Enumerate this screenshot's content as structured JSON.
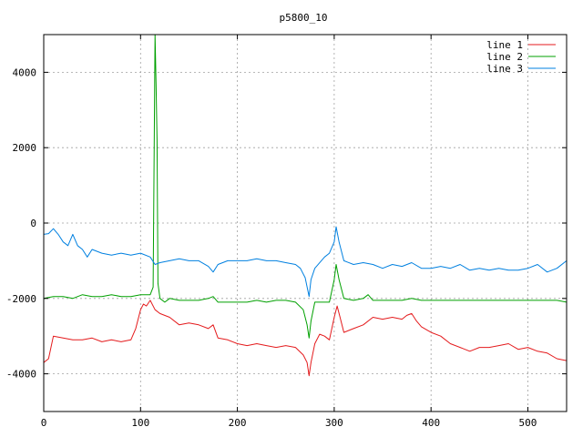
{
  "chart_data": {
    "type": "line",
    "title": "p5800_10",
    "xlabel": "",
    "ylabel": "",
    "xlim": [
      0,
      540
    ],
    "ylim": [
      -5000,
      5000
    ],
    "x_ticks": [
      0,
      100,
      200,
      300,
      400,
      500
    ],
    "y_ticks": [
      -4000,
      -2000,
      0,
      2000,
      4000
    ],
    "grid": true,
    "legend_position": "top-right",
    "series": [
      {
        "name": "line 1",
        "color": "#e41a1c",
        "points": [
          [
            0,
            -3700
          ],
          [
            5,
            -3600
          ],
          [
            10,
            -3000
          ],
          [
            20,
            -3050
          ],
          [
            30,
            -3100
          ],
          [
            40,
            -3100
          ],
          [
            50,
            -3050
          ],
          [
            60,
            -3150
          ],
          [
            70,
            -3100
          ],
          [
            80,
            -3150
          ],
          [
            90,
            -3100
          ],
          [
            95,
            -2800
          ],
          [
            100,
            -2300
          ],
          [
            103,
            -2150
          ],
          [
            106,
            -2200
          ],
          [
            110,
            -2050
          ],
          [
            115,
            -2300
          ],
          [
            120,
            -2400
          ],
          [
            130,
            -2500
          ],
          [
            140,
            -2700
          ],
          [
            150,
            -2650
          ],
          [
            160,
            -2700
          ],
          [
            170,
            -2800
          ],
          [
            175,
            -2700
          ],
          [
            180,
            -3050
          ],
          [
            190,
            -3100
          ],
          [
            200,
            -3200
          ],
          [
            210,
            -3250
          ],
          [
            220,
            -3200
          ],
          [
            230,
            -3250
          ],
          [
            240,
            -3300
          ],
          [
            250,
            -3250
          ],
          [
            260,
            -3300
          ],
          [
            268,
            -3500
          ],
          [
            272,
            -3700
          ],
          [
            274,
            -4050
          ],
          [
            276,
            -3700
          ],
          [
            280,
            -3200
          ],
          [
            285,
            -2950
          ],
          [
            290,
            -3000
          ],
          [
            295,
            -3100
          ],
          [
            300,
            -2500
          ],
          [
            303,
            -2200
          ],
          [
            306,
            -2500
          ],
          [
            310,
            -2900
          ],
          [
            320,
            -2800
          ],
          [
            330,
            -2700
          ],
          [
            340,
            -2500
          ],
          [
            350,
            -2550
          ],
          [
            360,
            -2500
          ],
          [
            370,
            -2550
          ],
          [
            375,
            -2450
          ],
          [
            380,
            -2400
          ],
          [
            385,
            -2600
          ],
          [
            390,
            -2750
          ],
          [
            400,
            -2900
          ],
          [
            410,
            -3000
          ],
          [
            420,
            -3200
          ],
          [
            430,
            -3300
          ],
          [
            440,
            -3400
          ],
          [
            450,
            -3300
          ],
          [
            460,
            -3300
          ],
          [
            470,
            -3250
          ],
          [
            480,
            -3200
          ],
          [
            490,
            -3350
          ],
          [
            500,
            -3300
          ],
          [
            510,
            -3400
          ],
          [
            520,
            -3450
          ],
          [
            530,
            -3600
          ],
          [
            540,
            -3650
          ]
        ]
      },
      {
        "name": "line 2",
        "color": "#00a000",
        "points": [
          [
            0,
            -2000
          ],
          [
            10,
            -1950
          ],
          [
            20,
            -1950
          ],
          [
            30,
            -2000
          ],
          [
            40,
            -1900
          ],
          [
            50,
            -1950
          ],
          [
            60,
            -1950
          ],
          [
            70,
            -1900
          ],
          [
            80,
            -1950
          ],
          [
            90,
            -1950
          ],
          [
            100,
            -1900
          ],
          [
            110,
            -1900
          ],
          [
            113,
            -1700
          ],
          [
            115,
            5000
          ],
          [
            116,
            3700
          ],
          [
            117,
            2200
          ],
          [
            118,
            -1600
          ],
          [
            120,
            -2000
          ],
          [
            125,
            -2100
          ],
          [
            130,
            -2000
          ],
          [
            140,
            -2050
          ],
          [
            150,
            -2050
          ],
          [
            160,
            -2050
          ],
          [
            170,
            -2000
          ],
          [
            175,
            -1950
          ],
          [
            180,
            -2100
          ],
          [
            190,
            -2100
          ],
          [
            200,
            -2100
          ],
          [
            210,
            -2100
          ],
          [
            220,
            -2050
          ],
          [
            230,
            -2100
          ],
          [
            240,
            -2050
          ],
          [
            250,
            -2050
          ],
          [
            260,
            -2100
          ],
          [
            268,
            -2300
          ],
          [
            272,
            -2700
          ],
          [
            274,
            -3050
          ],
          [
            276,
            -2600
          ],
          [
            280,
            -2100
          ],
          [
            290,
            -2100
          ],
          [
            295,
            -2100
          ],
          [
            300,
            -1500
          ],
          [
            302,
            -1100
          ],
          [
            305,
            -1500
          ],
          [
            310,
            -2000
          ],
          [
            320,
            -2050
          ],
          [
            330,
            -2000
          ],
          [
            335,
            -1900
          ],
          [
            340,
            -2050
          ],
          [
            350,
            -2050
          ],
          [
            360,
            -2050
          ],
          [
            370,
            -2050
          ],
          [
            380,
            -2000
          ],
          [
            390,
            -2050
          ],
          [
            400,
            -2050
          ],
          [
            410,
            -2050
          ],
          [
            420,
            -2050
          ],
          [
            430,
            -2050
          ],
          [
            440,
            -2050
          ],
          [
            450,
            -2050
          ],
          [
            460,
            -2050
          ],
          [
            470,
            -2050
          ],
          [
            480,
            -2050
          ],
          [
            490,
            -2050
          ],
          [
            500,
            -2050
          ],
          [
            510,
            -2050
          ],
          [
            520,
            -2050
          ],
          [
            530,
            -2050
          ],
          [
            540,
            -2100
          ]
        ]
      },
      {
        "name": "line 3",
        "color": "#0080e0",
        "points": [
          [
            0,
            -300
          ],
          [
            5,
            -280
          ],
          [
            10,
            -150
          ],
          [
            15,
            -300
          ],
          [
            20,
            -500
          ],
          [
            25,
            -600
          ],
          [
            30,
            -300
          ],
          [
            35,
            -600
          ],
          [
            40,
            -700
          ],
          [
            45,
            -900
          ],
          [
            50,
            -700
          ],
          [
            60,
            -800
          ],
          [
            70,
            -850
          ],
          [
            80,
            -800
          ],
          [
            90,
            -850
          ],
          [
            100,
            -800
          ],
          [
            110,
            -900
          ],
          [
            115,
            -1100
          ],
          [
            120,
            -1050
          ],
          [
            130,
            -1000
          ],
          [
            140,
            -950
          ],
          [
            150,
            -1000
          ],
          [
            160,
            -1000
          ],
          [
            170,
            -1150
          ],
          [
            175,
            -1300
          ],
          [
            180,
            -1100
          ],
          [
            190,
            -1000
          ],
          [
            200,
            -1000
          ],
          [
            210,
            -1000
          ],
          [
            220,
            -950
          ],
          [
            230,
            -1000
          ],
          [
            240,
            -1000
          ],
          [
            250,
            -1050
          ],
          [
            260,
            -1100
          ],
          [
            265,
            -1200
          ],
          [
            270,
            -1450
          ],
          [
            274,
            -1950
          ],
          [
            276,
            -1500
          ],
          [
            280,
            -1200
          ],
          [
            290,
            -900
          ],
          [
            295,
            -800
          ],
          [
            300,
            -500
          ],
          [
            302,
            -100
          ],
          [
            305,
            -500
          ],
          [
            310,
            -1000
          ],
          [
            320,
            -1100
          ],
          [
            330,
            -1050
          ],
          [
            340,
            -1100
          ],
          [
            350,
            -1200
          ],
          [
            360,
            -1100
          ],
          [
            370,
            -1150
          ],
          [
            380,
            -1050
          ],
          [
            390,
            -1200
          ],
          [
            400,
            -1200
          ],
          [
            410,
            -1150
          ],
          [
            420,
            -1200
          ],
          [
            430,
            -1100
          ],
          [
            440,
            -1250
          ],
          [
            450,
            -1200
          ],
          [
            460,
            -1250
          ],
          [
            470,
            -1200
          ],
          [
            480,
            -1250
          ],
          [
            490,
            -1250
          ],
          [
            500,
            -1200
          ],
          [
            510,
            -1100
          ],
          [
            520,
            -1300
          ],
          [
            530,
            -1200
          ],
          [
            540,
            -1000
          ]
        ]
      }
    ]
  }
}
